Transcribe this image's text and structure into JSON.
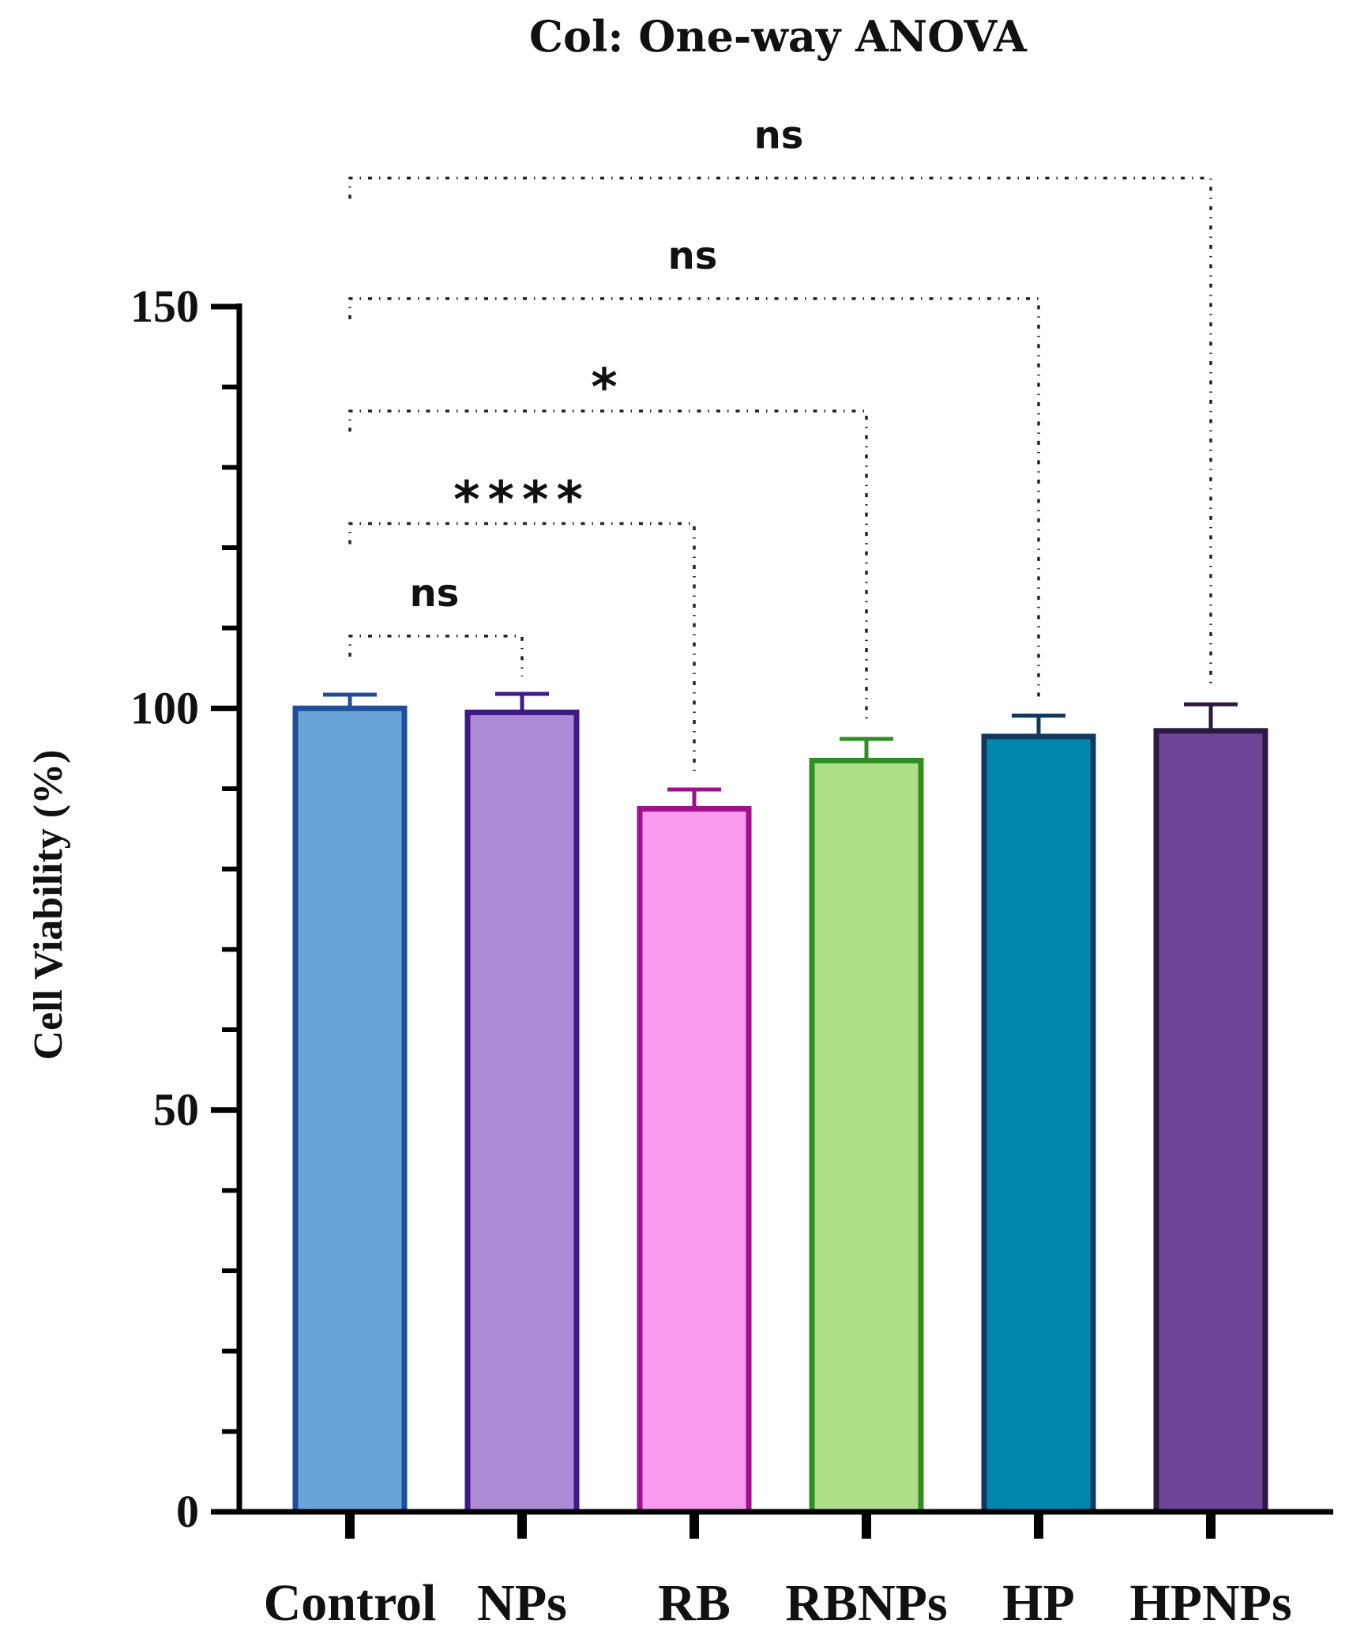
{
  "chart_data": {
    "type": "bar",
    "title": "Col: One-way ANOVA",
    "xlabel": "",
    "ylabel": "Cell Viability (%)",
    "ylim": [
      0,
      150
    ],
    "yticks": [
      0,
      50,
      100,
      150
    ],
    "categories": [
      "Control",
      "NPs",
      "RB",
      "RBNPs",
      "HP",
      "HPNPs"
    ],
    "values": [
      100.0,
      99.5,
      87.5,
      93.5,
      96.5,
      97.2
    ],
    "errors": [
      1.7,
      2.3,
      2.4,
      2.7,
      2.6,
      3.3
    ],
    "colors": {
      "fill": [
        "#6aa3d8",
        "#ad8ad6",
        "#fa9aec",
        "#aede88",
        "#0087b0",
        "#6e4496"
      ],
      "stroke": [
        "#1f4f9a",
        "#3e1a86",
        "#a0108f",
        "#2e8f20",
        "#10395e",
        "#2b1a3f"
      ]
    },
    "comparisons": [
      {
        "from": "Control",
        "to": "NPs",
        "label": "ns",
        "bracket_y": 109
      },
      {
        "from": "Control",
        "to": "RB",
        "label": "****",
        "bracket_y": 123
      },
      {
        "from": "Control",
        "to": "RBNPs",
        "label": "*",
        "bracket_y": 137
      },
      {
        "from": "Control",
        "to": "HP",
        "label": "ns",
        "bracket_y": 151
      },
      {
        "from": "Control",
        "to": "HPNPs",
        "label": "ns",
        "bracket_y": 166
      }
    ],
    "grid": false,
    "legend": "none"
  }
}
